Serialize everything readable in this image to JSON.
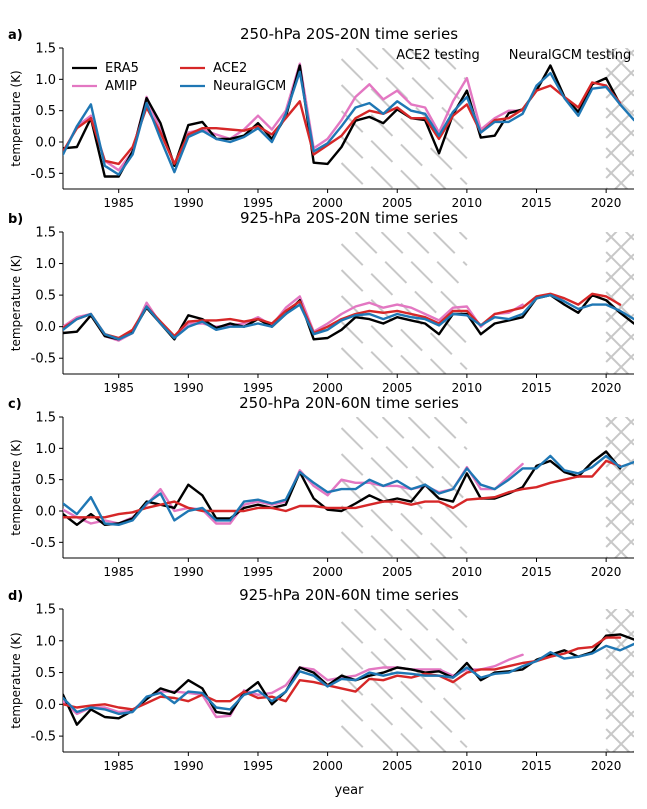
{
  "figure": {
    "xlabel": "year",
    "ylabel": "temperature (K)",
    "annotations": {
      "ace2_testing": "ACE2 testing",
      "neuralgcm_testing": "NeuralGCM testing"
    },
    "legend": [
      {
        "key": "ERA5",
        "label": "ERA5",
        "color": "#000000"
      },
      {
        "key": "ACE2",
        "label": "ACE2",
        "color": "#d62728"
      },
      {
        "key": "AMIP",
        "label": "AMIP",
        "color": "#e377c2"
      },
      {
        "key": "NeuralGCM",
        "label": "NeuralGCM",
        "color": "#1f77b4"
      }
    ]
  },
  "chart_data": [
    {
      "type": "line",
      "letter": "a)",
      "title": "250-hPa 20S-20N time series",
      "xlim": [
        1981,
        2022
      ],
      "ylim": [
        -0.75,
        1.5
      ],
      "xticks": [
        1985,
        1990,
        1995,
        2000,
        2005,
        2010,
        2015,
        2020
      ],
      "yticks": [
        -0.5,
        0.0,
        0.5,
        1.0,
        1.5
      ],
      "shade": {
        "ace2_testing": [
          2001,
          2010
        ],
        "neuralgcm_testing": [
          2020,
          2022
        ]
      },
      "series": [
        {
          "name": "ERA5",
          "color": "#000000",
          "start": 1981,
          "values": [
            -0.1,
            -0.08,
            0.38,
            -0.55,
            -0.55,
            -0.15,
            0.7,
            0.3,
            -0.38,
            0.27,
            0.32,
            0.05,
            0.05,
            0.1,
            0.3,
            0.05,
            0.4,
            1.22,
            -0.33,
            -0.35,
            -0.08,
            0.34,
            0.4,
            0.3,
            0.52,
            0.38,
            0.35,
            -0.18,
            0.44,
            0.82,
            0.07,
            0.1,
            0.46,
            0.52,
            0.82,
            1.22,
            0.72,
            0.48,
            0.92,
            1.02,
            0.6
          ]
        },
        {
          "name": "ACE2",
          "color": "#d62728",
          "start": 1981,
          "values": [
            -0.15,
            0.22,
            0.38,
            -0.3,
            -0.35,
            -0.08,
            0.55,
            0.15,
            -0.35,
            0.12,
            0.22,
            0.22,
            0.2,
            0.18,
            0.25,
            0.12,
            0.38,
            0.65,
            -0.2,
            -0.05,
            0.1,
            0.38,
            0.5,
            0.45,
            0.55,
            0.38,
            0.38,
            0.05,
            0.42,
            0.6,
            0.15,
            0.35,
            0.38,
            0.52,
            0.82,
            0.9,
            0.72,
            0.55,
            0.95,
            0.9,
            0.62
          ]
        },
        {
          "name": "AMIP",
          "color": "#e377c2",
          "start": 1981,
          "values": [
            -0.18,
            0.25,
            0.42,
            -0.3,
            -0.45,
            -0.15,
            0.72,
            0.18,
            -0.35,
            0.15,
            0.2,
            0.12,
            0.05,
            0.2,
            0.42,
            0.2,
            0.5,
            1.25,
            -0.1,
            0.05,
            0.35,
            0.72,
            0.92,
            0.68,
            0.82,
            0.6,
            0.55,
            0.15,
            0.65,
            1.02,
            0.2,
            0.38,
            0.5,
            0.5
          ]
        },
        {
          "name": "NeuralGCM",
          "color": "#1f77b4",
          "start": 1981,
          "values": [
            -0.2,
            0.25,
            0.6,
            -0.38,
            -0.52,
            -0.2,
            0.62,
            0.05,
            -0.48,
            0.08,
            0.18,
            0.05,
            0.0,
            0.08,
            0.22,
            0.0,
            0.45,
            1.12,
            -0.15,
            -0.02,
            0.25,
            0.55,
            0.62,
            0.45,
            0.65,
            0.5,
            0.45,
            0.1,
            0.48,
            0.72,
            0.15,
            0.32,
            0.32,
            0.45,
            0.9,
            1.1,
            0.7,
            0.42,
            0.85,
            0.88,
            0.6,
            0.35
          ]
        }
      ]
    },
    {
      "type": "line",
      "letter": "b)",
      "title": "925-hPa 20S-20N time series",
      "xlim": [
        1981,
        2022
      ],
      "ylim": [
        -0.75,
        1.5
      ],
      "xticks": [
        1985,
        1990,
        1995,
        2000,
        2005,
        2010,
        2015,
        2020
      ],
      "yticks": [
        -0.5,
        0.0,
        0.5,
        1.0,
        1.5
      ],
      "shade": {
        "ace2_testing": [
          2001,
          2010
        ],
        "neuralgcm_testing": [
          2020,
          2022
        ]
      },
      "series": [
        {
          "name": "ERA5",
          "color": "#000000",
          "start": 1981,
          "values": [
            -0.1,
            -0.08,
            0.18,
            -0.15,
            -0.2,
            -0.08,
            0.3,
            0.05,
            -0.2,
            0.18,
            0.12,
            -0.02,
            0.05,
            0.0,
            0.12,
            0.0,
            0.2,
            0.42,
            -0.2,
            -0.18,
            -0.05,
            0.15,
            0.12,
            0.05,
            0.15,
            0.1,
            0.05,
            -0.12,
            0.2,
            0.2,
            -0.12,
            0.05,
            0.1,
            0.15,
            0.45,
            0.5,
            0.35,
            0.22,
            0.5,
            0.42,
            0.22,
            0.05
          ]
        },
        {
          "name": "ACE2",
          "color": "#d62728",
          "start": 1981,
          "values": [
            -0.02,
            0.12,
            0.2,
            -0.12,
            -0.18,
            -0.05,
            0.32,
            0.08,
            -0.15,
            0.08,
            0.1,
            0.1,
            0.12,
            0.08,
            0.12,
            0.05,
            0.25,
            0.4,
            -0.1,
            0.0,
            0.12,
            0.2,
            0.25,
            0.22,
            0.25,
            0.2,
            0.15,
            0.05,
            0.25,
            0.25,
            0.02,
            0.2,
            0.25,
            0.3,
            0.48,
            0.52,
            0.45,
            0.35,
            0.52,
            0.48,
            0.35
          ]
        },
        {
          "name": "AMIP",
          "color": "#e377c2",
          "start": 1981,
          "values": [
            0.0,
            0.15,
            0.2,
            -0.15,
            -0.22,
            -0.1,
            0.38,
            0.05,
            -0.18,
            0.05,
            0.05,
            0.0,
            0.02,
            0.05,
            0.15,
            0.02,
            0.3,
            0.48,
            -0.08,
            0.05,
            0.2,
            0.32,
            0.38,
            0.3,
            0.35,
            0.3,
            0.2,
            0.1,
            0.3,
            0.32,
            0.0,
            0.2,
            0.22,
            0.35
          ]
        },
        {
          "name": "NeuralGCM",
          "color": "#1f77b4",
          "start": 1981,
          "values": [
            -0.05,
            0.12,
            0.2,
            -0.12,
            -0.2,
            -0.1,
            0.32,
            0.05,
            -0.18,
            0.0,
            0.08,
            -0.05,
            0.0,
            0.0,
            0.05,
            0.0,
            0.2,
            0.35,
            -0.12,
            -0.05,
            0.1,
            0.18,
            0.2,
            0.12,
            0.2,
            0.15,
            0.12,
            0.02,
            0.2,
            0.18,
            0.02,
            0.15,
            0.12,
            0.2,
            0.45,
            0.5,
            0.4,
            0.28,
            0.35,
            0.35,
            0.25,
            0.12
          ]
        }
      ]
    },
    {
      "type": "line",
      "letter": "c)",
      "title": "250-hPa 20N-60N time series",
      "xlim": [
        1981,
        2022
      ],
      "ylim": [
        -0.75,
        1.5
      ],
      "xticks": [
        1985,
        1990,
        1995,
        2000,
        2005,
        2010,
        2015,
        2020
      ],
      "yticks": [
        -0.5,
        0.0,
        0.5,
        1.0,
        1.5
      ],
      "shade": {
        "ace2_testing": [
          2001,
          2010
        ],
        "neuralgcm_testing": [
          2020,
          2022
        ]
      },
      "series": [
        {
          "name": "ERA5",
          "color": "#000000",
          "start": 1981,
          "values": [
            -0.05,
            -0.22,
            -0.05,
            -0.22,
            -0.2,
            -0.12,
            0.15,
            0.1,
            0.05,
            0.42,
            0.25,
            -0.12,
            -0.12,
            0.05,
            0.1,
            0.05,
            0.1,
            0.62,
            0.2,
            0.02,
            0.0,
            0.12,
            0.25,
            0.15,
            0.2,
            0.15,
            0.42,
            0.2,
            0.15,
            0.6,
            0.2,
            0.2,
            0.28,
            0.38,
            0.72,
            0.8,
            0.62,
            0.55,
            0.78,
            0.95,
            0.68
          ]
        },
        {
          "name": "ACE2",
          "color": "#d62728",
          "start": 1981,
          "values": [
            -0.1,
            -0.1,
            -0.1,
            -0.1,
            -0.05,
            -0.02,
            0.05,
            0.1,
            0.15,
            0.05,
            0.0,
            0.0,
            0.0,
            0.0,
            0.05,
            0.05,
            0.0,
            0.08,
            0.08,
            0.05,
            0.05,
            0.05,
            0.1,
            0.15,
            0.15,
            0.1,
            0.15,
            0.15,
            0.05,
            0.18,
            0.2,
            0.22,
            0.3,
            0.35,
            0.38,
            0.45,
            0.5,
            0.55,
            0.55,
            0.8,
            0.72
          ]
        },
        {
          "name": "AMIP",
          "color": "#e377c2",
          "start": 1981,
          "values": [
            0.02,
            -0.1,
            -0.2,
            -0.15,
            -0.2,
            -0.1,
            0.1,
            0.35,
            0.0,
            0.05,
            0.02,
            -0.2,
            -0.2,
            0.1,
            0.15,
            0.1,
            0.15,
            0.65,
            0.4,
            0.25,
            0.5,
            0.45,
            0.45,
            0.4,
            0.4,
            0.35,
            0.4,
            0.3,
            0.35,
            0.7,
            0.35,
            0.35,
            0.55,
            0.75
          ]
        },
        {
          "name": "NeuralGCM",
          "color": "#1f77b4",
          "start": 1981,
          "values": [
            0.12,
            -0.05,
            0.22,
            -0.2,
            -0.22,
            -0.15,
            0.12,
            0.28,
            -0.15,
            0.0,
            0.05,
            -0.15,
            -0.15,
            0.15,
            0.18,
            0.12,
            0.18,
            0.62,
            0.45,
            0.3,
            0.35,
            0.35,
            0.5,
            0.4,
            0.48,
            0.35,
            0.42,
            0.28,
            0.35,
            0.68,
            0.42,
            0.35,
            0.5,
            0.68,
            0.68,
            0.88,
            0.65,
            0.6,
            0.7,
            0.88,
            0.7,
            0.78
          ]
        }
      ]
    },
    {
      "type": "line",
      "letter": "d)",
      "title": "925-hPa 20N-60N time series",
      "xlim": [
        1981,
        2022
      ],
      "ylim": [
        -0.75,
        1.5
      ],
      "xticks": [
        1985,
        1990,
        1995,
        2000,
        2005,
        2010,
        2015,
        2020
      ],
      "yticks": [
        -0.5,
        0.0,
        0.5,
        1.0,
        1.5
      ],
      "shade": {
        "ace2_testing": [
          2001,
          2010
        ],
        "neuralgcm_testing": [
          2020,
          2022
        ]
      },
      "series": [
        {
          "name": "ERA5",
          "color": "#000000",
          "start": 1981,
          "values": [
            0.15,
            -0.32,
            -0.08,
            -0.2,
            -0.22,
            -0.1,
            0.08,
            0.25,
            0.18,
            0.38,
            0.25,
            -0.12,
            -0.15,
            0.18,
            0.35,
            0.0,
            0.2,
            0.58,
            0.5,
            0.3,
            0.45,
            0.38,
            0.45,
            0.5,
            0.58,
            0.55,
            0.5,
            0.52,
            0.42,
            0.65,
            0.38,
            0.5,
            0.52,
            0.55,
            0.7,
            0.78,
            0.85,
            0.75,
            0.82,
            1.08,
            1.1,
            1.02
          ]
        },
        {
          "name": "ACE2",
          "color": "#d62728",
          "start": 1981,
          "values": [
            0.0,
            -0.05,
            -0.02,
            0.0,
            -0.05,
            -0.08,
            0.02,
            0.12,
            0.1,
            0.05,
            0.15,
            0.05,
            0.05,
            0.2,
            0.1,
            0.12,
            0.05,
            0.38,
            0.35,
            0.3,
            0.25,
            0.2,
            0.4,
            0.38,
            0.45,
            0.42,
            0.48,
            0.45,
            0.35,
            0.5,
            0.55,
            0.55,
            0.6,
            0.65,
            0.68,
            0.75,
            0.8,
            0.88,
            0.9,
            1.05,
            1.05
          ]
        },
        {
          "name": "AMIP",
          "color": "#e377c2",
          "start": 1981,
          "values": [
            0.05,
            -0.15,
            -0.05,
            -0.05,
            -0.12,
            -0.1,
            0.1,
            0.2,
            0.2,
            0.18,
            0.15,
            -0.2,
            -0.18,
            0.22,
            0.15,
            0.18,
            0.3,
            0.58,
            0.55,
            0.38,
            0.42,
            0.45,
            0.55,
            0.58,
            0.58,
            0.55,
            0.55,
            0.55,
            0.45,
            0.55,
            0.55,
            0.6,
            0.7,
            0.78
          ]
        },
        {
          "name": "NeuralGCM",
          "color": "#1f77b4",
          "start": 1981,
          "values": [
            0.1,
            -0.12,
            -0.05,
            -0.08,
            -0.15,
            -0.12,
            0.12,
            0.18,
            0.02,
            0.2,
            0.18,
            -0.05,
            -0.08,
            0.15,
            0.22,
            0.05,
            0.2,
            0.52,
            0.45,
            0.28,
            0.4,
            0.38,
            0.5,
            0.45,
            0.5,
            0.48,
            0.45,
            0.45,
            0.42,
            0.58,
            0.42,
            0.48,
            0.5,
            0.6,
            0.68,
            0.82,
            0.72,
            0.75,
            0.8,
            0.92,
            0.85,
            0.95
          ]
        }
      ]
    }
  ]
}
